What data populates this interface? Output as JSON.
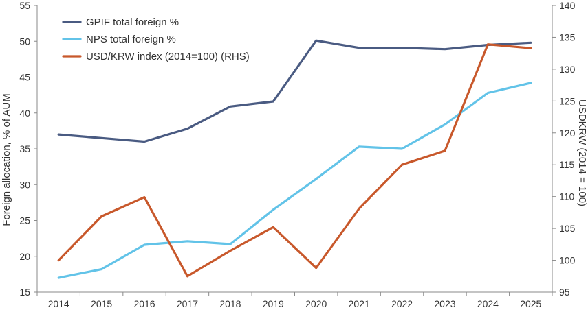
{
  "chart_data": {
    "type": "line",
    "title": "",
    "x": [
      "2014",
      "2015",
      "2016",
      "2017",
      "2018",
      "2019",
      "2020",
      "2021",
      "2022",
      "2023",
      "2024",
      "2025"
    ],
    "ylabel": "Foreign allocation, % of AUM",
    "y2label": "USDKRW (2014 = 100)",
    "ylim": [
      15,
      55
    ],
    "y2lim": [
      95,
      140
    ],
    "yticks": [
      "15",
      "20",
      "25",
      "30",
      "35",
      "40",
      "45",
      "50",
      "55"
    ],
    "y2ticks": [
      "95",
      "100",
      "105",
      "110",
      "115",
      "120",
      "125",
      "130",
      "135",
      "140"
    ],
    "grid": false,
    "legend_position": "top-left",
    "series": [
      {
        "name": "GPIF total foreign %",
        "axis": "left",
        "color": "#4a5b82",
        "values": [
          37.0,
          36.5,
          36.0,
          37.8,
          40.9,
          41.6,
          50.1,
          49.1,
          49.1,
          48.9,
          49.5,
          49.8
        ]
      },
      {
        "name": "NPS total foreign %",
        "axis": "left",
        "color": "#62c3e8",
        "values": [
          17.0,
          18.2,
          21.6,
          22.1,
          21.7,
          26.5,
          30.8,
          35.3,
          35.0,
          38.4,
          42.8,
          44.2
        ]
      },
      {
        "name": "USD/KRW index (2014=100) (RHS)",
        "axis": "right",
        "color": "#c8582b",
        "values": [
          100.0,
          106.9,
          109.9,
          97.5,
          101.5,
          105.2,
          98.8,
          108.1,
          115.0,
          117.2,
          133.9,
          133.3
        ]
      }
    ]
  }
}
